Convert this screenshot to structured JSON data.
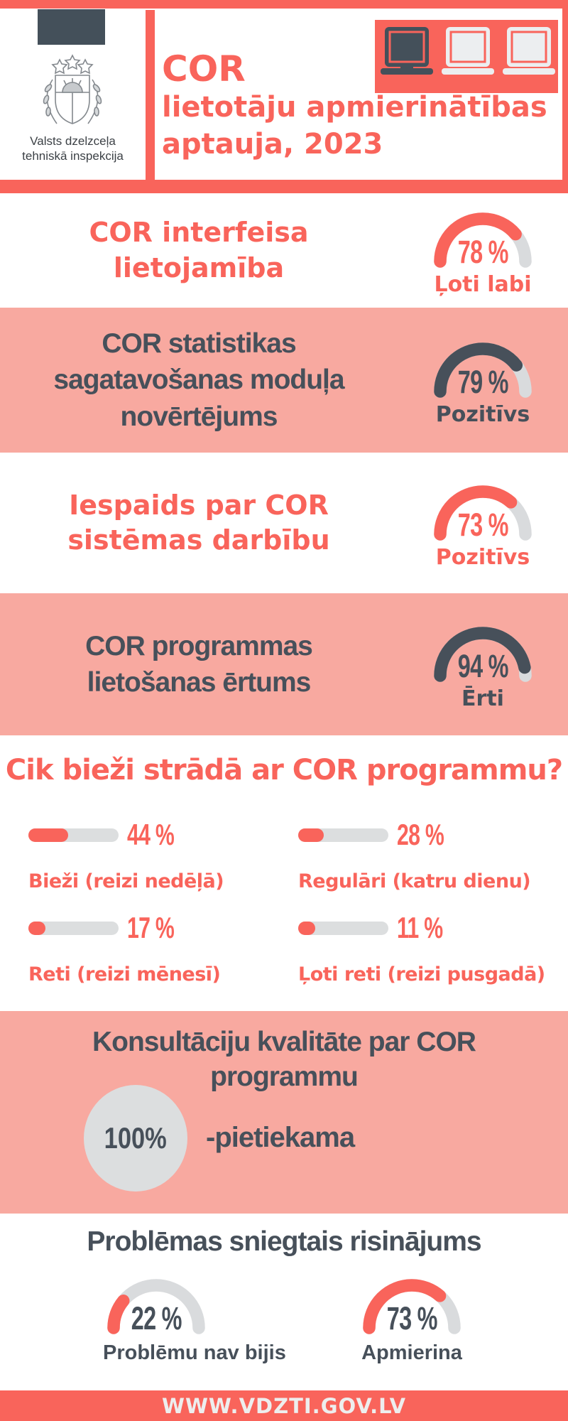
{
  "colors": {
    "coral": "#f9645b",
    "pink": "#f8a9a0",
    "slate": "#47505a",
    "track_gray": "#d9dbdd",
    "footer_text": "#edeeee"
  },
  "header": {
    "org": {
      "line1": "Valsts dzelzceļa",
      "line2": "tehniskā inspekcija"
    },
    "title": {
      "line1": "COR",
      "line2": "lietotāju apmierinātības",
      "line3": "aptauja, 2023"
    },
    "icons": {
      "logo": "coat-of-arms",
      "decoration": "laptops-icon"
    }
  },
  "gauge_sections": [
    {
      "lines": [
        "COR interfeisa lietojamība"
      ],
      "value": 78,
      "value_text": "78 %",
      "verdict": "Ļoti labi",
      "theme": "coral",
      "background": "white"
    },
    {
      "lines": [
        "COR statistikas",
        "sagatavošanas moduļa",
        "novērtējums"
      ],
      "value": 79,
      "value_text": "79 %",
      "verdict": "Pozitīvs",
      "theme": "slate",
      "background": "pink"
    },
    {
      "lines": [
        "Iespaids par COR",
        "sistēmas darbību"
      ],
      "value": 73,
      "value_text": "73 %",
      "verdict": "Pozitīvs",
      "theme": "coral",
      "background": "white"
    },
    {
      "lines": [
        "COR programmas",
        "lietošanas ērtums"
      ],
      "value": 94,
      "value_text": "94 %",
      "verdict": "Ērti",
      "theme": "slate",
      "background": "pink"
    }
  ],
  "frequency": {
    "title": "Cik bieži strādā ar COR programmu?",
    "items": [
      {
        "value": 44,
        "value_text": "44 %",
        "label": "Bieži (reizi nedēļā)"
      },
      {
        "value": 28,
        "value_text": "28 %",
        "label": "Regulāri (katru dienu)"
      },
      {
        "value": 17,
        "value_text": "17 %",
        "label": "Reti (reizi mēnesī)"
      },
      {
        "value": 11,
        "value_text": "11 %",
        "label": "Ļoti reti (reizi pusgadā)"
      }
    ]
  },
  "consultation": {
    "lines": [
      "Konsultāciju kvalitāte par COR",
      "programmu"
    ],
    "circle_value": "100%",
    "circle_label": "-pietiekama"
  },
  "problems": {
    "title": "Problēmas sniegtais risinājums",
    "gauges": [
      {
        "value": 22,
        "value_text": "22 %",
        "label": "Problēmu nav bijis"
      },
      {
        "value": 73,
        "value_text": "73 %",
        "label": "Apmierina"
      }
    ]
  },
  "footer": {
    "url": "WWW.VDZTI.GOV.LV"
  },
  "chart_data": [
    {
      "type": "gauge",
      "title": "COR interfeisa lietojamība",
      "value": 78,
      "unit": "%",
      "range": [
        0,
        100
      ],
      "label": "Ļoti labi"
    },
    {
      "type": "gauge",
      "title": "COR statistikas sagatavošanas moduļa novērtējums",
      "value": 79,
      "unit": "%",
      "range": [
        0,
        100
      ],
      "label": "Pozitīvs"
    },
    {
      "type": "gauge",
      "title": "Iespaids par COR sistēmas darbību",
      "value": 73,
      "unit": "%",
      "range": [
        0,
        100
      ],
      "label": "Pozitīvs"
    },
    {
      "type": "gauge",
      "title": "COR programmas lietošanas ērtums",
      "value": 94,
      "unit": "%",
      "range": [
        0,
        100
      ],
      "label": "Ērti"
    },
    {
      "type": "bar",
      "title": "Cik bieži strādā ar COR programmu?",
      "categories": [
        "Bieži (reizi nedēļā)",
        "Regulāri (katru dienu)",
        "Reti (reizi mēnesī)",
        "Ļoti reti (reizi pusgadā)"
      ],
      "values": [
        44,
        28,
        17,
        11
      ],
      "unit": "%",
      "xlim": [
        0,
        100
      ]
    },
    {
      "type": "pie",
      "title": "Konsultāciju kvalitāte par COR programmu",
      "categories": [
        "-pietiekama"
      ],
      "values": [
        100
      ],
      "unit": "%"
    },
    {
      "type": "gauge",
      "title": "Problēmas sniegtais risinājums — Problēmu nav bijis",
      "value": 22,
      "unit": "%",
      "range": [
        0,
        100
      ]
    },
    {
      "type": "gauge",
      "title": "Problēmas sniegtais risinājums — Apmierina",
      "value": 73,
      "unit": "%",
      "range": [
        0,
        100
      ]
    }
  ]
}
